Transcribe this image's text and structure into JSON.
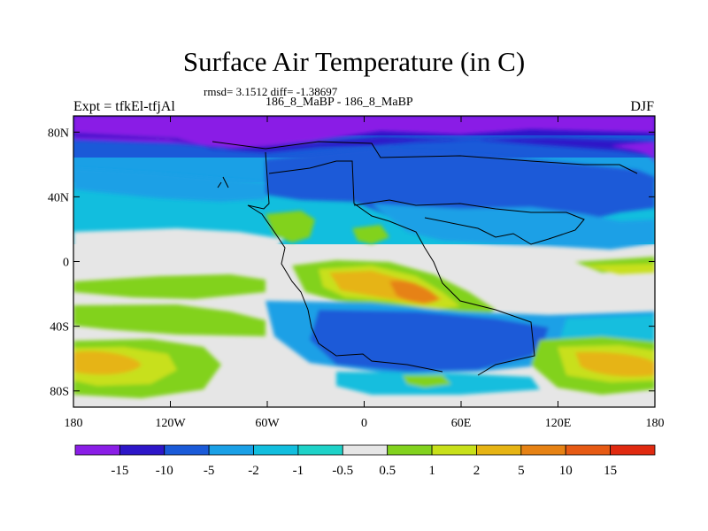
{
  "title": "Surface Air Temperature (in C)",
  "stats": "rmsd= 3.1512 diff= -1.38697",
  "case_label": "186_8_MaBP - 186_8_MaBP",
  "experiment": "Expt = tfkEl-tfjAl",
  "season": "DJF",
  "map": {
    "type": "contour-map",
    "lon_range": [
      -180,
      180
    ],
    "lat_range": [
      -90,
      90
    ],
    "lat_ticks": [
      {
        "value": 80,
        "label": "80N"
      },
      {
        "value": 40,
        "label": "40N"
      },
      {
        "value": 0,
        "label": "0"
      },
      {
        "value": -40,
        "label": "40S"
      },
      {
        "value": -80,
        "label": "80S"
      }
    ],
    "lon_ticks": [
      {
        "value": -180,
        "label": "180"
      },
      {
        "value": -120,
        "label": "120W"
      },
      {
        "value": -60,
        "label": "60W"
      },
      {
        "value": 0,
        "label": "0"
      },
      {
        "value": 60,
        "label": "60E"
      },
      {
        "value": 120,
        "label": "120E"
      },
      {
        "value": 180,
        "label": "180"
      }
    ]
  },
  "colorbar": {
    "labels": [
      "-15",
      "-10",
      "-5",
      "-2",
      "-1",
      "-0.5",
      "0.5",
      "1",
      "2",
      "5",
      "10",
      "15"
    ],
    "colors": [
      "#8a1ee6",
      "#2d16c8",
      "#1a5ad8",
      "#1aa0e6",
      "#12bede",
      "#1ed2c8",
      "#e6e6e6",
      "#82d21e",
      "#c8e01a",
      "#e6b414",
      "#e68214",
      "#e65a14",
      "#e02a10"
    ]
  }
}
